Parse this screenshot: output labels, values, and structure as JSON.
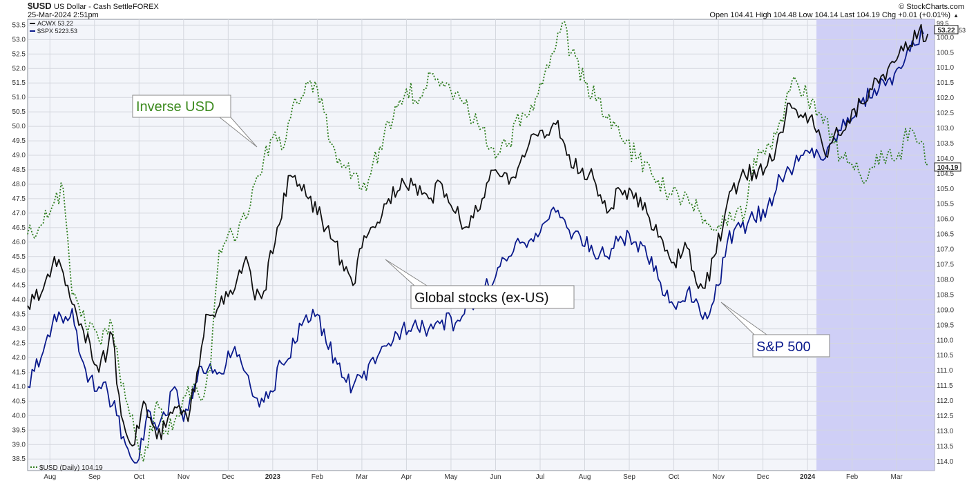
{
  "header": {
    "symbol": "$USD",
    "name": "US Dollar - Cash Settle",
    "exchange": "FOREX",
    "date": "25-Mar-2024 2:51pm",
    "source": "© StockCharts.com",
    "ohlc": "Open 104.41  High 104.48  Low 104.14  Last 104.19  Chg +0.01 (+0.01%)",
    "up_glyph": "▲"
  },
  "legend": {
    "acwx": "ACWX 53.22",
    "spx": "$SPX 5223.53",
    "usd": "$USD (Daily) 104.19"
  },
  "badges": {
    "left_value": "53.22",
    "right_value": "104.19",
    "clipped_top": "99.5",
    "clipped_edge": "53"
  },
  "annotations": {
    "inverse_usd": "Inverse USD",
    "global_stocks": "Global stocks (ex-US)",
    "sp500": "S&P 500"
  },
  "colors": {
    "usd": "#2e7d1e",
    "acwx": "#111111",
    "spx": "#0a1a8c",
    "highlight": "#c8c8f5",
    "grid": "#d4d7de",
    "plot_bg": "#f3f5fa"
  },
  "chart_data": {
    "type": "line",
    "highlight": {
      "x_from": "2024-01-22",
      "x_to": "2024-03-25"
    },
    "x_ticks": [
      "Aug",
      "Sep",
      "Oct",
      "Nov",
      "Dec",
      "2023",
      "Feb",
      "Mar",
      "Apr",
      "May",
      "Jun",
      "Jul",
      "Aug",
      "Sep",
      "Oct",
      "Nov",
      "Dec",
      "2024",
      "Feb",
      "Mar"
    ],
    "left_axis": {
      "range": [
        38.1,
        53.7
      ],
      "ticks": [
        "38.5",
        "39.0",
        "39.5",
        "40.0",
        "40.5",
        "41.0",
        "41.5",
        "42.0",
        "42.5",
        "43.0",
        "43.5",
        "44.0",
        "44.5",
        "45.0",
        "45.5",
        "46.0",
        "46.5",
        "47.0",
        "47.5",
        "48.0",
        "48.5",
        "49.0",
        "49.5",
        "50.0",
        "50.5",
        "51.0",
        "51.5",
        "52.0",
        "52.5",
        "53.0",
        "53.5"
      ]
    },
    "right_axis": {
      "inverted": true,
      "range": [
        99.4,
        114.3
      ],
      "ticks": [
        "100.0",
        "100.5",
        "101.0",
        "101.5",
        "102.0",
        "102.5",
        "103.0",
        "103.5",
        "104.0",
        "104.5",
        "105.0",
        "105.5",
        "106.0",
        "106.5",
        "107.0",
        "107.5",
        "108.0",
        "108.5",
        "109.0",
        "109.5",
        "110.0",
        "110.5",
        "111.0",
        "111.5",
        "112.0",
        "112.5",
        "113.0",
        "113.5",
        "114.0"
      ]
    },
    "series": [
      {
        "name": "$USD (Daily)",
        "axis": "right",
        "style": "dotted",
        "x": [
          "Aug",
          "Sep",
          "Oct",
          "Nov",
          "Dec",
          "2023",
          "Feb",
          "Mar",
          "Apr",
          "May",
          "Jun",
          "Jul",
          "Aug",
          "Sep",
          "Oct",
          "Nov",
          "Dec",
          "2024",
          "Feb",
          "Mar"
        ],
        "points": [
          [
            0,
            106.5
          ],
          [
            0.3,
            106.2
          ],
          [
            0.5,
            105.8
          ],
          [
            0.8,
            105.0
          ],
          [
            1.0,
            108.5
          ],
          [
            1.3,
            109.5
          ],
          [
            1.6,
            110.0
          ],
          [
            1.9,
            109.5
          ],
          [
            2.1,
            111.5
          ],
          [
            2.4,
            113.0
          ],
          [
            2.6,
            114.0
          ],
          [
            2.9,
            112.0
          ],
          [
            3.1,
            113.0
          ],
          [
            3.4,
            112.5
          ],
          [
            3.7,
            111.5
          ],
          [
            3.9,
            112.0
          ],
          [
            4.1,
            111.0
          ],
          [
            4.3,
            107.0
          ],
          [
            4.6,
            106.5
          ],
          [
            4.9,
            106.0
          ],
          [
            5.1,
            104.8
          ],
          [
            5.3,
            104.0
          ],
          [
            5.5,
            103.3
          ],
          [
            5.7,
            103.7
          ],
          [
            6.0,
            102.0
          ],
          [
            6.3,
            101.5
          ],
          [
            6.6,
            102.0
          ],
          [
            6.8,
            103.5
          ],
          [
            7.0,
            104.0
          ],
          [
            7.3,
            104.5
          ],
          [
            7.5,
            105.0
          ],
          [
            7.7,
            104.5
          ],
          [
            8.0,
            103.2
          ],
          [
            8.3,
            102.3
          ],
          [
            8.5,
            101.7
          ],
          [
            8.8,
            102.0
          ],
          [
            9.1,
            101.2
          ],
          [
            9.4,
            101.5
          ],
          [
            9.7,
            102.0
          ],
          [
            9.9,
            102.5
          ],
          [
            10.2,
            103.0
          ],
          [
            10.5,
            104.0
          ],
          [
            10.8,
            103.5
          ],
          [
            11.1,
            102.5
          ],
          [
            11.4,
            102.0
          ],
          [
            11.7,
            101.0
          ],
          [
            12.0,
            99.5
          ],
          [
            12.2,
            100.5
          ],
          [
            12.5,
            101.5
          ],
          [
            12.8,
            102.0
          ],
          [
            13.1,
            103.0
          ],
          [
            13.4,
            103.5
          ],
          [
            13.7,
            104.0
          ],
          [
            14.0,
            104.5
          ],
          [
            14.3,
            105.0
          ],
          [
            14.6,
            105.2
          ],
          [
            14.9,
            105.5
          ],
          [
            15.2,
            106.0
          ],
          [
            15.5,
            106.2
          ],
          [
            15.8,
            106.0
          ],
          [
            16.1,
            105.8
          ],
          [
            16.3,
            104.0
          ],
          [
            16.6,
            103.5
          ],
          [
            16.8,
            103.2
          ],
          [
            17.0,
            102.2
          ],
          [
            17.2,
            101.3
          ],
          [
            17.5,
            102.0
          ],
          [
            17.8,
            102.5
          ],
          [
            18.1,
            103.5
          ],
          [
            18.3,
            104.0
          ],
          [
            18.5,
            104.2
          ],
          [
            18.7,
            104.6
          ],
          [
            19.0,
            104.3
          ],
          [
            19.3,
            103.8
          ],
          [
            19.5,
            104.0
          ],
          [
            19.8,
            103.0
          ],
          [
            20.0,
            103.5
          ],
          [
            20.2,
            104.2
          ]
        ]
      },
      {
        "name": "ACWX",
        "axis": "left",
        "style": "solid",
        "x": [
          "Aug",
          "Sep",
          "Oct",
          "Nov",
          "Dec",
          "2023",
          "Feb",
          "Mar",
          "Apr",
          "May",
          "Jun",
          "Jul",
          "Aug",
          "Sep",
          "Oct",
          "Nov",
          "Dec",
          "2024",
          "Feb",
          "Mar"
        ],
        "points": [
          [
            0,
            43.8
          ],
          [
            0.3,
            44.2
          ],
          [
            0.6,
            45.5
          ],
          [
            0.9,
            44.5
          ],
          [
            1.1,
            43.5
          ],
          [
            1.4,
            42.5
          ],
          [
            1.6,
            41.5
          ],
          [
            1.9,
            42.8
          ],
          [
            2.1,
            40.0
          ],
          [
            2.4,
            39.0
          ],
          [
            2.6,
            40.5
          ],
          [
            2.9,
            39.2
          ],
          [
            3.1,
            39.6
          ],
          [
            3.3,
            40.3
          ],
          [
            3.6,
            39.8
          ],
          [
            3.8,
            41.5
          ],
          [
            4.0,
            43.5
          ],
          [
            4.3,
            43.8
          ],
          [
            4.6,
            44.2
          ],
          [
            4.9,
            45.5
          ],
          [
            5.1,
            44.0
          ],
          [
            5.3,
            44.3
          ],
          [
            5.6,
            46.5
          ],
          [
            5.9,
            48.3
          ],
          [
            6.1,
            48.0
          ],
          [
            6.3,
            47.5
          ],
          [
            6.6,
            46.8
          ],
          [
            6.9,
            46.0
          ],
          [
            7.1,
            45.0
          ],
          [
            7.3,
            44.5
          ],
          [
            7.5,
            45.8
          ],
          [
            7.8,
            46.5
          ],
          [
            8.1,
            47.5
          ],
          [
            8.4,
            48.2
          ],
          [
            8.7,
            48.0
          ],
          [
            9.0,
            47.5
          ],
          [
            9.3,
            48.0
          ],
          [
            9.6,
            47.0
          ],
          [
            9.9,
            46.5
          ],
          [
            10.2,
            47.5
          ],
          [
            10.5,
            48.5
          ],
          [
            10.8,
            48.0
          ],
          [
            11.1,
            49.0
          ],
          [
            11.3,
            49.7
          ],
          [
            11.6,
            49.6
          ],
          [
            11.9,
            50.2
          ],
          [
            12.1,
            49.0
          ],
          [
            12.4,
            48.4
          ],
          [
            12.7,
            48.2
          ],
          [
            13.0,
            47.0
          ],
          [
            13.3,
            47.8
          ],
          [
            13.6,
            47.5
          ],
          [
            13.9,
            47.0
          ],
          [
            14.2,
            46.2
          ],
          [
            14.5,
            45.3
          ],
          [
            14.8,
            45.8
          ],
          [
            15.0,
            44.6
          ],
          [
            15.2,
            44.4
          ],
          [
            15.4,
            45.5
          ],
          [
            15.6,
            46.5
          ],
          [
            15.8,
            47.8
          ],
          [
            16.1,
            48.3
          ],
          [
            16.4,
            48.5
          ],
          [
            16.7,
            48.8
          ],
          [
            16.9,
            49.8
          ],
          [
            17.1,
            50.8
          ],
          [
            17.3,
            50.3
          ],
          [
            17.6,
            50.4
          ],
          [
            17.9,
            49.0
          ],
          [
            18.1,
            49.7
          ],
          [
            18.4,
            50.2
          ],
          [
            18.7,
            50.8
          ],
          [
            18.9,
            51.3
          ],
          [
            19.2,
            51.8
          ],
          [
            19.5,
            52.3
          ],
          [
            19.8,
            52.8
          ],
          [
            20.0,
            53.3
          ],
          [
            20.2,
            53.2
          ]
        ]
      },
      {
        "name": "$SPX",
        "axis": "left",
        "style": "solid",
        "x": [
          "Aug",
          "Sep",
          "Oct",
          "Nov",
          "Dec",
          "2023",
          "Feb",
          "Mar",
          "Apr",
          "May",
          "Jun",
          "Jul",
          "Aug",
          "Sep",
          "Oct",
          "Nov",
          "Dec",
          "2024",
          "Feb",
          "Mar"
        ],
        "points": [
          [
            0,
            41.0
          ],
          [
            0.3,
            42.0
          ],
          [
            0.6,
            43.5
          ],
          [
            0.8,
            43.2
          ],
          [
            1.0,
            43.7
          ],
          [
            1.2,
            42.0
          ],
          [
            1.4,
            41.3
          ],
          [
            1.6,
            41.0
          ],
          [
            1.8,
            40.8
          ],
          [
            2.0,
            40.0
          ],
          [
            2.2,
            39.0
          ],
          [
            2.5,
            38.5
          ],
          [
            2.7,
            40.2
          ],
          [
            2.9,
            39.5
          ],
          [
            3.1,
            40.0
          ],
          [
            3.3,
            41.0
          ],
          [
            3.5,
            39.8
          ],
          [
            3.7,
            40.6
          ],
          [
            3.9,
            41.7
          ],
          [
            4.1,
            41.8
          ],
          [
            4.3,
            41.5
          ],
          [
            4.6,
            42.2
          ],
          [
            4.8,
            41.8
          ],
          [
            5.0,
            41.0
          ],
          [
            5.2,
            40.3
          ],
          [
            5.4,
            40.6
          ],
          [
            5.7,
            41.8
          ],
          [
            6.0,
            42.5
          ],
          [
            6.2,
            43.3
          ],
          [
            6.5,
            43.5
          ],
          [
            6.7,
            42.5
          ],
          [
            6.9,
            42.0
          ],
          [
            7.1,
            41.3
          ],
          [
            7.3,
            41.0
          ],
          [
            7.5,
            41.3
          ],
          [
            7.8,
            41.8
          ],
          [
            8.1,
            42.5
          ],
          [
            8.4,
            43.0
          ],
          [
            8.7,
            43.3
          ],
          [
            9.0,
            43.0
          ],
          [
            9.3,
            43.3
          ],
          [
            9.6,
            43.2
          ],
          [
            9.9,
            43.8
          ],
          [
            10.2,
            44.3
          ],
          [
            10.5,
            44.8
          ],
          [
            10.8,
            45.5
          ],
          [
            11.1,
            46.0
          ],
          [
            11.4,
            46.3
          ],
          [
            11.7,
            46.8
          ],
          [
            11.9,
            47.1
          ],
          [
            12.1,
            46.5
          ],
          [
            12.4,
            46.2
          ],
          [
            12.7,
            45.6
          ],
          [
            13.0,
            45.5
          ],
          [
            13.3,
            46.2
          ],
          [
            13.6,
            46.0
          ],
          [
            13.9,
            45.5
          ],
          [
            14.2,
            44.6
          ],
          [
            14.5,
            43.8
          ],
          [
            14.8,
            44.3
          ],
          [
            15.1,
            43.5
          ],
          [
            15.3,
            43.5
          ],
          [
            15.5,
            44.5
          ],
          [
            15.7,
            46.0
          ],
          [
            16.0,
            46.5
          ],
          [
            16.3,
            46.8
          ],
          [
            16.6,
            47.2
          ],
          [
            16.9,
            48.2
          ],
          [
            17.1,
            48.5
          ],
          [
            17.4,
            49.0
          ],
          [
            17.7,
            49.2
          ],
          [
            17.9,
            48.9
          ],
          [
            18.1,
            49.6
          ],
          [
            18.4,
            50.3
          ],
          [
            18.7,
            50.8
          ],
          [
            19.0,
            51.3
          ],
          [
            19.3,
            51.6
          ],
          [
            19.6,
            52.0
          ],
          [
            19.9,
            52.8
          ],
          [
            20.1,
            53.2
          ]
        ]
      }
    ]
  }
}
